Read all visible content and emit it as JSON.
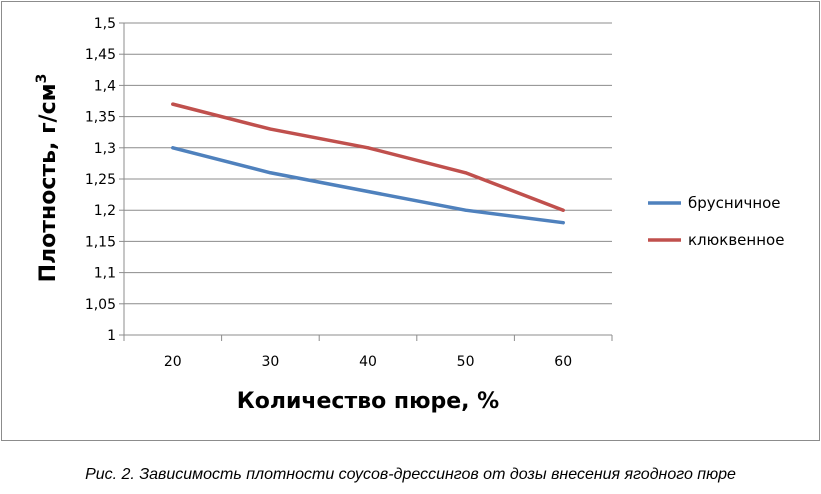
{
  "chart_data": {
    "type": "line",
    "xlabel": "Количество пюре, %",
    "ylabel": "Плотность,  г/см",
    "ylabel_superscript": "3",
    "x": [
      20,
      30,
      40,
      50,
      60
    ],
    "categories": [
      "20",
      "30",
      "40",
      "50",
      "60"
    ],
    "ylim": [
      1,
      1.5
    ],
    "yticks": [
      "1",
      "1,05",
      "1,1",
      "1,15",
      "1,2",
      "1,25",
      "1,3",
      "1,35",
      "1,4",
      "1,45",
      "1,5"
    ],
    "grid": "horizontal",
    "legend_position": "right",
    "series": [
      {
        "name": "брусничное",
        "color": "#4f81bd",
        "values": [
          1.3,
          1.26,
          1.23,
          1.2,
          1.18
        ]
      },
      {
        "name": "клюквенное",
        "color": "#c0504d",
        "values": [
          1.37,
          1.33,
          1.3,
          1.26,
          1.2
        ]
      }
    ]
  },
  "caption": "Рис. 2. Зависимость плотности соусов-дрессингов от дозы внесения ягодного пюре"
}
